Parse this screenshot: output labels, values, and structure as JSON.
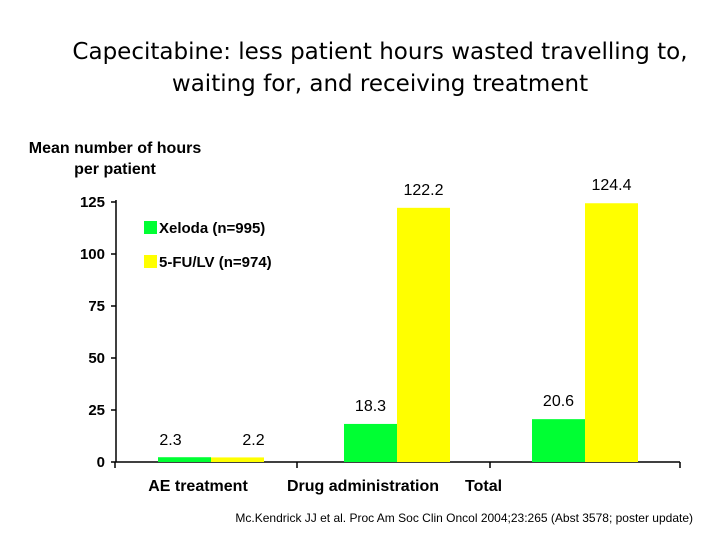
{
  "title_lines": [
    "Capecitabine: less patient hours wasted travelling to,",
    "waiting for, and receiving treatment"
  ],
  "source": "Mc.Kendrick JJ et al. Proc Am Soc Clin Oncol 2004;23:265 (Abst 3578; poster update)",
  "chart_data": {
    "type": "bar",
    "title": "Capecitabine: less patient hours wasted travelling to, waiting for, and receiving treatment",
    "ylabel_lines": [
      "Mean number of hours",
      "per patient"
    ],
    "ylim": [
      0,
      125
    ],
    "yticks": [
      0,
      25,
      50,
      75,
      100,
      125
    ],
    "categories": [
      "AE treatment",
      "Drug administration",
      "Total"
    ],
    "series": [
      {
        "name": "Xeloda (n=995)",
        "color": "#00ff33",
        "values": [
          2.3,
          18.3,
          20.6
        ],
        "labels": [
          "2.3",
          "18.3",
          "20.6"
        ]
      },
      {
        "name": "5-FU/LV (n=974)",
        "color": "#ffff00",
        "values": [
          2.2,
          122.2,
          124.4
        ],
        "labels": [
          "2.2",
          "122.2",
          "124.4"
        ]
      }
    ],
    "legend": "top-left",
    "grid": false
  }
}
